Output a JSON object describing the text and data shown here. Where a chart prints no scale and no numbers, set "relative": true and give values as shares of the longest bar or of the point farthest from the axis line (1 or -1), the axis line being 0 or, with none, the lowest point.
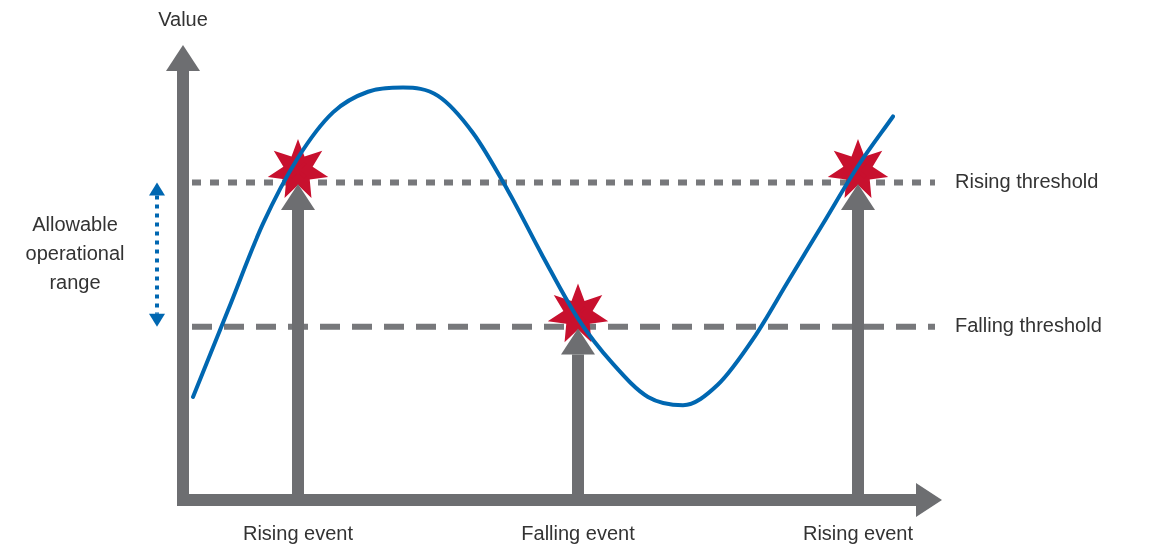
{
  "chart_data": {
    "type": "line",
    "relative": true,
    "ylabel": "Value",
    "categories": [
      null,
      null,
      null,
      "Rising event",
      null,
      null,
      null,
      null,
      null,
      null,
      null,
      "Falling event",
      null,
      null,
      null,
      null,
      null,
      null,
      null,
      "Rising event",
      null
    ],
    "series": [
      {
        "color": "#0067b1",
        "marker": "none",
        "values": [
          0.25,
          0.46,
          0.67,
          0.83,
          0.94,
          0.99,
          1,
          0.98,
          0.89,
          0.75,
          0.59,
          0.44,
          0.33,
          0.25,
          0.23,
          0.28,
          0.39,
          0.53,
          0.67,
          0.81,
          0.93
        ]
      },
      {
        "type": "scatter",
        "color": "#c8102e",
        "marker": "star",
        "values": [
          null,
          null,
          null,
          0.8,
          null,
          null,
          null,
          null,
          null,
          null,
          null,
          0.45,
          null,
          null,
          null,
          null,
          null,
          null,
          null,
          0.8,
          null
        ]
      }
    ],
    "ref_lines": [
      {
        "axis": "y",
        "value": 0.77,
        "label": "Rising threshold",
        "color": "#77787b",
        "line_style": "dotted"
      },
      {
        "axis": "y",
        "value": 0.42,
        "label": "Falling threshold",
        "color": "#77787b",
        "line_style": "dashed"
      }
    ],
    "annotations": [
      "Allowable operational range"
    ],
    "line_style": "solid",
    "grid": false,
    "legend": false
  }
}
